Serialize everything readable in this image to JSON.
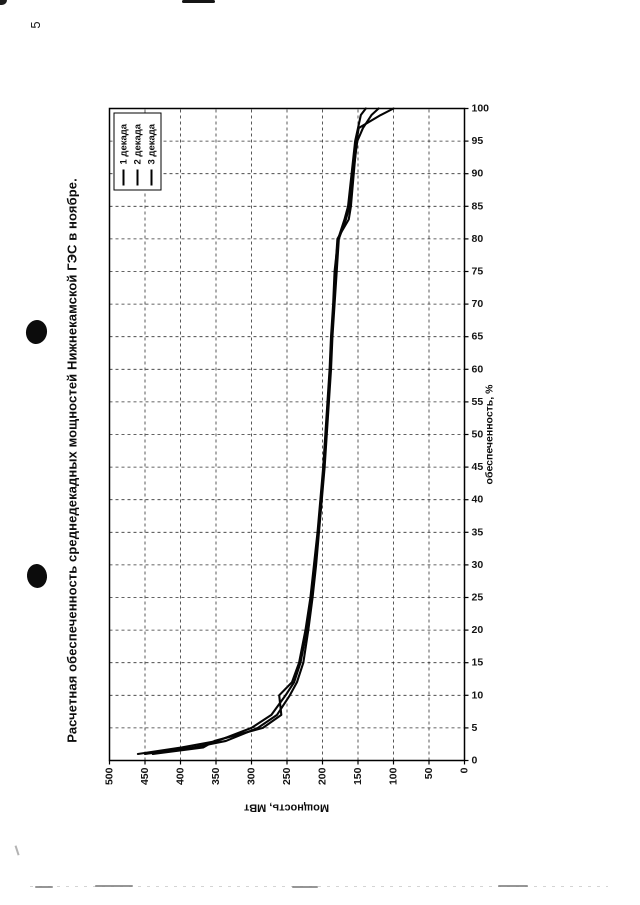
{
  "page": {
    "number": "5"
  },
  "chart_data": {
    "type": "line",
    "title": "Расчетная обеспеченность среднедекадных мощностей Нижнекамской ГЭС в ноябре.",
    "xlabel": "обеспеченность, %",
    "ylabel": "Мощность, МВт",
    "xlim": [
      0,
      100
    ],
    "ylim": [
      0,
      500
    ],
    "x_ticks": [
      0,
      5,
      10,
      15,
      20,
      25,
      30,
      35,
      40,
      45,
      50,
      55,
      60,
      65,
      70,
      75,
      80,
      85,
      90,
      95,
      100
    ],
    "y_ticks": [
      0,
      50,
      100,
      150,
      200,
      250,
      300,
      350,
      400,
      450,
      500
    ],
    "grid": "dashed-both-axes",
    "legend_position": "top-right-inside-plot (page scanned rotated 90°)",
    "series_color": "#000000",
    "x": [
      1,
      2,
      3,
      5,
      7,
      10,
      12,
      15,
      20,
      25,
      30,
      35,
      40,
      45,
      50,
      55,
      60,
      65,
      70,
      75,
      80,
      83,
      85,
      90,
      95,
      97,
      99,
      100
    ],
    "series": [
      {
        "name": "1 декада",
        "values": [
          460,
          398,
          348,
          300,
          272,
          252,
          240,
          231,
          222,
          216,
          211,
          206,
          202,
          198,
          195,
          192,
          189,
          187,
          184,
          182,
          179,
          163,
          160,
          156,
          152,
          149,
          118,
          100
        ]
      },
      {
        "name": "2 декада",
        "values": [
          450,
          382,
          336,
          291,
          264,
          246,
          236,
          227,
          220,
          214,
          209,
          205,
          201,
          197,
          194,
          191,
          188,
          186,
          183,
          180,
          177,
          167,
          162,
          157,
          151,
          143,
          131,
          121
        ]
      },
      {
        "name": "3 декада",
        "values": [
          439,
          368,
          352,
          284,
          258,
          261,
          243,
          233,
          224,
          217,
          212,
          207,
          203,
          199,
          196,
          193,
          190,
          188,
          185,
          183,
          178,
          169,
          164,
          159,
          154,
          150,
          146,
          139
        ]
      }
    ]
  }
}
